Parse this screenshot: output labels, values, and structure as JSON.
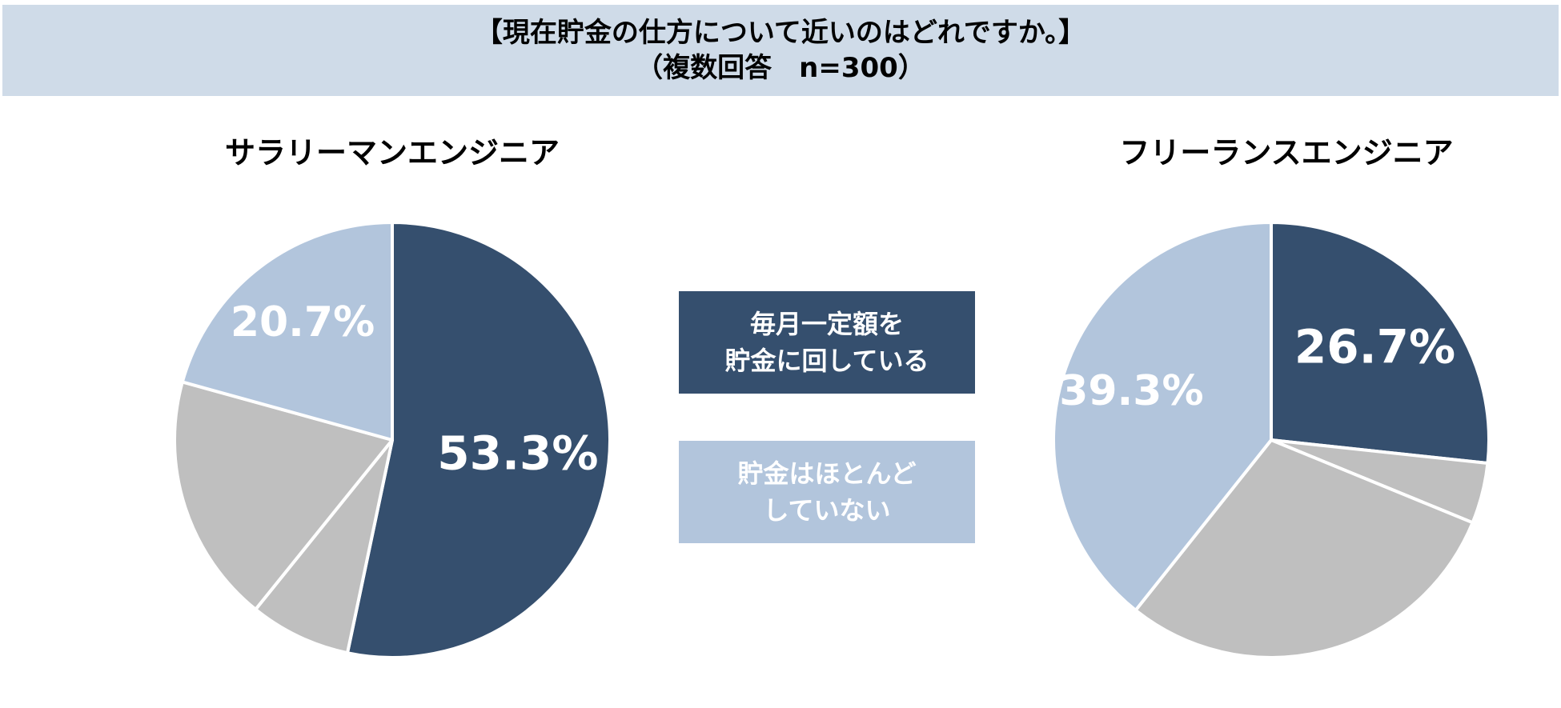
{
  "header": {
    "title_line1": "【現在貯金の仕方について近いのはどれですか。】",
    "title_line2": "（複数回答　n=300）"
  },
  "colors": {
    "dark": "#354f6e",
    "gray": "#bfbfbf",
    "light": "#b2c5dc",
    "header_bg": "#cfdbe8"
  },
  "legend": [
    {
      "lines": [
        "毎月一定額を",
        "貯金に回している"
      ],
      "color": "#354f6e"
    },
    {
      "lines": [
        "貯金はほとんど",
        "していない"
      ],
      "color": "#b2c5dc"
    }
  ],
  "chart_data": [
    {
      "type": "pie",
      "title": "サラリーマンエンジニア",
      "slices": [
        {
          "value": 53.3,
          "label": "53.3%",
          "color": "#354f6e"
        },
        {
          "value": 7.5,
          "label": "",
          "color": "#bfbfbf"
        },
        {
          "value": 18.5,
          "label": "",
          "color": "#bfbfbf"
        },
        {
          "value": 20.7,
          "label": "20.7%",
          "color": "#b2c5dc"
        }
      ]
    },
    {
      "type": "pie",
      "title": "フリーランスエンジニア",
      "slices": [
        {
          "value": 26.7,
          "label": "26.7%",
          "color": "#354f6e"
        },
        {
          "value": 4.5,
          "label": "",
          "color": "#bfbfbf"
        },
        {
          "value": 29.5,
          "label": "",
          "color": "#bfbfbf"
        },
        {
          "value": 39.3,
          "label": "39.3%",
          "color": "#b2c5dc"
        }
      ]
    }
  ]
}
